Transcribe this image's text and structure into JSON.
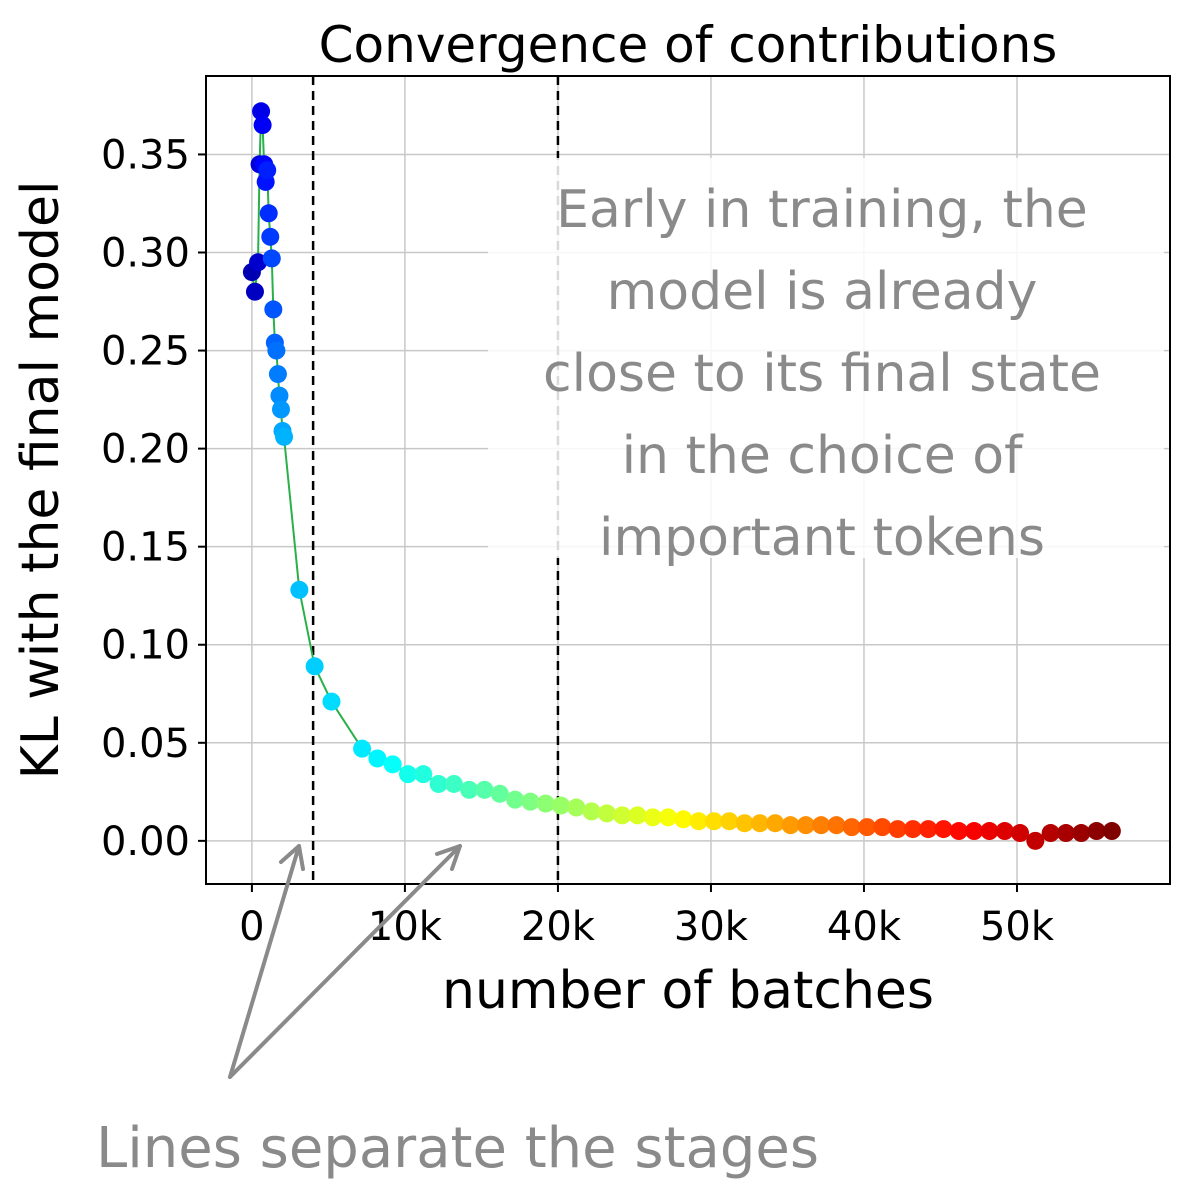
{
  "chart_data": {
    "type": "scatter",
    "title": "Convergence of contributions",
    "xlabel": "number of batches",
    "ylabel": "KL with the final model",
    "xlim": [
      -3000,
      60000
    ],
    "ylim": [
      -0.022,
      0.39
    ],
    "x_ticks": [
      {
        "value": 0,
        "label": "0"
      },
      {
        "value": 10000,
        "label": "10k"
      },
      {
        "value": 20000,
        "label": "20k"
      },
      {
        "value": 30000,
        "label": "30k"
      },
      {
        "value": 40000,
        "label": "40k"
      },
      {
        "value": 50000,
        "label": "50k"
      }
    ],
    "y_ticks": [
      {
        "value": 0.0,
        "label": "0.00"
      },
      {
        "value": 0.05,
        "label": "0.05"
      },
      {
        "value": 0.1,
        "label": "0.10"
      },
      {
        "value": 0.15,
        "label": "0.15"
      },
      {
        "value": 0.2,
        "label": "0.20"
      },
      {
        "value": 0.25,
        "label": "0.25"
      },
      {
        "value": 0.3,
        "label": "0.30"
      },
      {
        "value": 0.35,
        "label": "0.35"
      }
    ],
    "grid": true,
    "line_color": "#2ab04a",
    "stage_boundaries": [
      4000,
      20000
    ],
    "colormap": "jet",
    "series": [
      {
        "x": [
          0,
          200,
          400,
          500,
          600,
          700,
          800,
          900,
          1000,
          1100,
          1200,
          1300,
          1400,
          1500,
          1600,
          1700,
          1800,
          1900,
          2000,
          2100,
          3100,
          4100,
          5200,
          7200,
          8200,
          9200,
          10200,
          11200,
          12200,
          13200,
          14200,
          15200,
          16200,
          17200,
          18200,
          19200,
          20200,
          21200,
          22200,
          23200,
          24200,
          25200,
          26200,
          27200,
          28200,
          29200,
          30200,
          31200,
          32200,
          33200,
          34200,
          35200,
          36200,
          37200,
          38200,
          39200,
          40200,
          41200,
          42200,
          43200,
          44200,
          45200,
          46200,
          47200,
          48200,
          49200,
          50200,
          51200,
          52200,
          53200,
          54200,
          55200,
          56200
        ],
        "y": [
          0.29,
          0.28,
          0.295,
          0.345,
          0.372,
          0.365,
          0.345,
          0.336,
          0.342,
          0.32,
          0.308,
          0.297,
          0.271,
          0.254,
          0.25,
          0.238,
          0.227,
          0.22,
          0.209,
          0.206,
          0.128,
          0.089,
          0.071,
          0.047,
          0.042,
          0.039,
          0.034,
          0.034,
          0.029,
          0.029,
          0.026,
          0.026,
          0.024,
          0.021,
          0.02,
          0.019,
          0.018,
          0.017,
          0.015,
          0.014,
          0.013,
          0.013,
          0.012,
          0.012,
          0.011,
          0.01,
          0.01,
          0.01,
          0.009,
          0.009,
          0.009,
          0.008,
          0.008,
          0.008,
          0.008,
          0.007,
          0.007,
          0.007,
          0.006,
          0.006,
          0.006,
          0.006,
          0.005,
          0.005,
          0.005,
          0.005,
          0.004,
          0.0,
          0.004,
          0.004,
          0.004,
          0.005,
          0.005
        ]
      }
    ]
  },
  "annotation": {
    "lines": [
      "Early in training, the",
      "model is already",
      "close to its final state",
      "in the choice of",
      "important tokens"
    ]
  },
  "footer": {
    "text": "Lines separate the stages"
  }
}
